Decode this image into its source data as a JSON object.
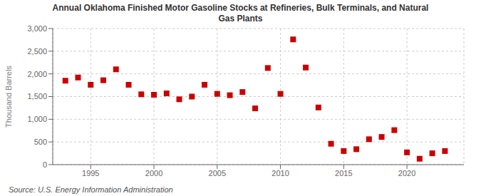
{
  "chart_data": {
    "type": "scatter",
    "title": "Annual Oklahoma Finished Motor Gasoline Stocks at Refineries, Bulk Terminals, and Natural\nGas Plants",
    "ylabel": "Thousand Barrels",
    "annotation": "Source: U.S. Energy Information Administration",
    "x": [
      1993,
      1994,
      1995,
      1996,
      1997,
      1998,
      1999,
      2000,
      2001,
      2002,
      2003,
      2004,
      2005,
      2006,
      2007,
      2008,
      2009,
      2010,
      2011,
      2012,
      2013,
      2014,
      2015,
      2016,
      2017,
      2018,
      2019,
      2020,
      2021,
      2022,
      2023
    ],
    "values": [
      1850,
      1920,
      1760,
      1860,
      2100,
      1760,
      1550,
      1540,
      1570,
      1440,
      1500,
      1760,
      1560,
      1530,
      1600,
      1240,
      2130,
      1560,
      2760,
      2140,
      1260,
      460,
      300,
      340,
      560,
      610,
      760,
      270,
      130,
      250,
      300
    ],
    "color": "#cc0000",
    "marker": "square",
    "xlim": [
      1992,
      2024.5
    ],
    "xticks": [
      1995,
      2000,
      2005,
      2010,
      2015,
      2020
    ],
    "ylim": [
      0,
      3000
    ],
    "yticks": [
      0,
      500,
      {
        "value": 1000,
        "label": "1,000"
      },
      {
        "value": 1500,
        "label": "1,500"
      },
      {
        "value": 2000,
        "label": "2,000"
      },
      {
        "value": 2500,
        "label": "2,500"
      },
      {
        "value": 3000,
        "label": "3,000"
      }
    ],
    "grid": true
  }
}
